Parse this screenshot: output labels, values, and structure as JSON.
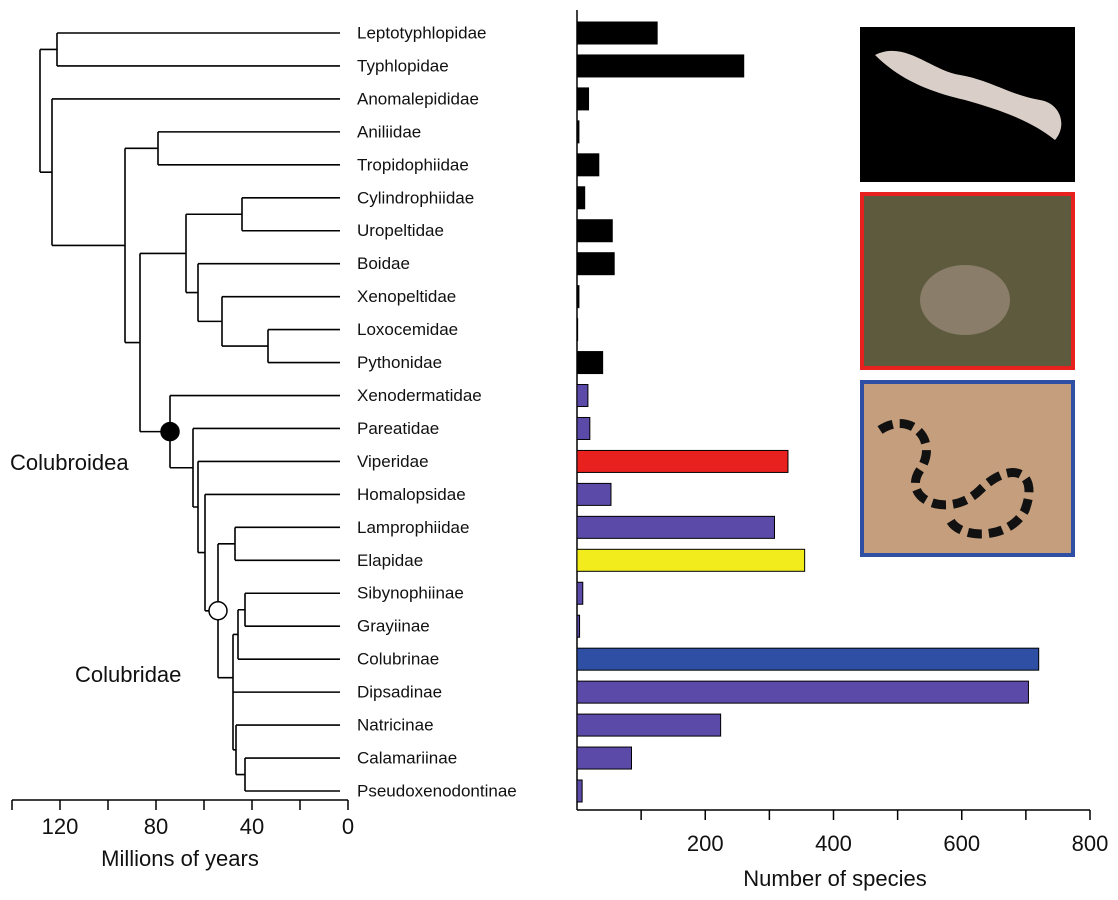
{
  "chart_data": [
    {
      "type": "barh",
      "xlabel": "Number of species",
      "categories": [
        "Leptotyphlopidae",
        "Typhlopidae",
        "Anomalepididae",
        "Aniliidae",
        "Tropidophiidae",
        "Cylindrophiidae",
        "Uropeltidae",
        "Boidae",
        "Xenopeltidae",
        "Loxocemidae",
        "Pythonidae",
        "Xenodermatidae",
        "Pareatidae",
        "Viperidae",
        "Homalopsidae",
        "Lamprophiidae",
        "Elapidae",
        "Sibynophiinae",
        "Grayiinae",
        "Colubrinae",
        "Dipsadinae",
        "Natricinae",
        "Calamariinae",
        "Pseudoxenodontinae"
      ],
      "values": [
        125,
        260,
        18,
        3,
        34,
        12,
        55,
        58,
        3,
        1,
        40,
        17,
        20,
        329,
        53,
        308,
        355,
        9,
        4,
        720,
        704,
        224,
        85,
        8
      ],
      "colors": [
        "#000000",
        "#000000",
        "#000000",
        "#000000",
        "#000000",
        "#000000",
        "#000000",
        "#000000",
        "#000000",
        "#000000",
        "#000000",
        "#5b4aa8",
        "#5b4aa8",
        "#e8211e",
        "#5b4aa8",
        "#5b4aa8",
        "#f2ec1c",
        "#5b4aa8",
        "#5b4aa8",
        "#2e4fa3",
        "#5b4aa8",
        "#5b4aa8",
        "#5b4aa8",
        "#5b4aa8"
      ],
      "xlim": [
        0,
        800
      ],
      "xticks": [
        200,
        400,
        600,
        800
      ],
      "xminorticks": [
        100,
        300,
        500,
        700
      ]
    },
    {
      "type": "tree",
      "xlabel": "Millions of years",
      "xlim": [
        140,
        0
      ],
      "xticks": [
        120,
        80,
        40,
        0
      ],
      "xminorticks": [
        140,
        100,
        60,
        20
      ],
      "annotations": [
        "Colubroidea",
        "Colubridae"
      ]
    }
  ]
}
